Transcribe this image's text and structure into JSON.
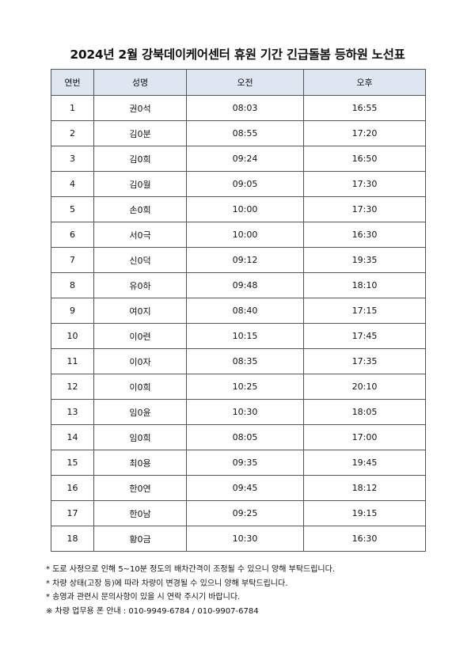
{
  "title": "2024년 2월 강북데이케어센터 휴원 기간 긴급돌봄 등하원 노선표",
  "headers": [
    "연번",
    "성명",
    "오전",
    "오후"
  ],
  "rows": [
    [
      "1",
      "권0석",
      "08:03",
      "16:55"
    ],
    [
      "2",
      "김0분",
      "08:55",
      "17:20"
    ],
    [
      "3",
      "김0희",
      "09:24",
      "16:50"
    ],
    [
      "4",
      "김0월",
      "09:05",
      "17:30"
    ],
    [
      "5",
      "손0희",
      "10:00",
      "17:30"
    ],
    [
      "6",
      "서0극",
      "10:00",
      "16:30"
    ],
    [
      "7",
      "신0덕",
      "09:12",
      "19:35"
    ],
    [
      "8",
      "유0하",
      "09:48",
      "18:10"
    ],
    [
      "9",
      "여0지",
      "08:40",
      "17:15"
    ],
    [
      "10",
      "이0련",
      "10:15",
      "17:45"
    ],
    [
      "11",
      "이0자",
      "08:35",
      "17:35"
    ],
    [
      "12",
      "이0희",
      "10:25",
      "20:10"
    ],
    [
      "13",
      "임0윤",
      "10:30",
      "18:05"
    ],
    [
      "14",
      "임0희",
      "08:05",
      "17:00"
    ],
    [
      "15",
      "최0용",
      "09:35",
      "19:45"
    ],
    [
      "16",
      "한0연",
      "09:45",
      "18:12"
    ],
    [
      "17",
      "한0남",
      "09:25",
      "19:15"
    ],
    [
      "18",
      "황0금",
      "10:30",
      "16:30"
    ]
  ],
  "notes": [
    "* 도로 사정으로 인해 5~10분 정도의 배차간격이 조정될 수 있으니 양해 부탁드립니다.",
    "* 차량 상태(고장 등)에 따라 차량이 변경될 수 있으니 양해 부탁드립니다.",
    "* 송영과 관련시 문의사항이 있을 시 연락 주시기 바랍니다.",
    "※ 차량 업무용 폰 안내 : 010-9949-6784 / 010-9907-6784"
  ],
  "header_color": "#dde6f1"
}
